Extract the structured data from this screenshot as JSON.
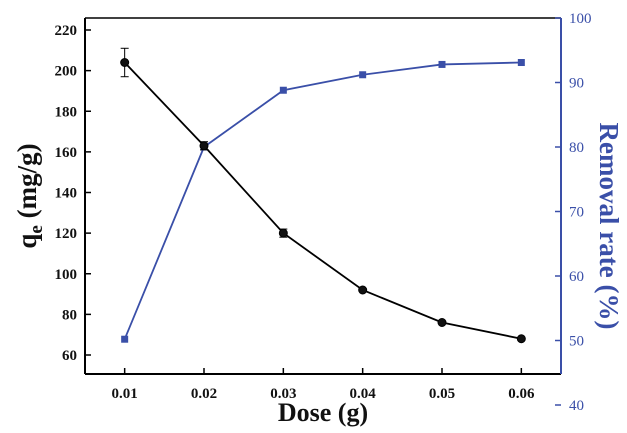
{
  "chart_data": {
    "type": "line",
    "x": [
      0.01,
      0.02,
      0.03,
      0.04,
      0.05,
      0.06
    ],
    "x_tick_labels": [
      "0.01",
      "0.02",
      "0.03",
      "0.04",
      "0.05",
      "0.06"
    ],
    "xlabel": "Dose (g)",
    "xlim": [
      0.005,
      0.065
    ],
    "ylabel_left": "qe (mg/g)",
    "ylabel_right": "Removal rate (%)",
    "ylim_left": [
      50,
      230
    ],
    "ylim_right": [
      35,
      100
    ],
    "yticks_left": [
      60,
      80,
      100,
      120,
      140,
      160,
      180,
      200,
      220
    ],
    "yticks_right": [
      40,
      50,
      60,
      70,
      80,
      90,
      100
    ],
    "grid": false,
    "series": [
      {
        "axis": "left",
        "marker": "circle",
        "color": "#000000",
        "values": [
          204,
          163,
          120,
          92,
          76,
          68
        ],
        "error": [
          7,
          2,
          2,
          0,
          0,
          0
        ]
      },
      {
        "axis": "right",
        "marker": "square",
        "color": "#3a4fa8",
        "values": [
          50.2,
          80.0,
          88.8,
          91.2,
          92.8,
          93.1
        ]
      }
    ]
  }
}
